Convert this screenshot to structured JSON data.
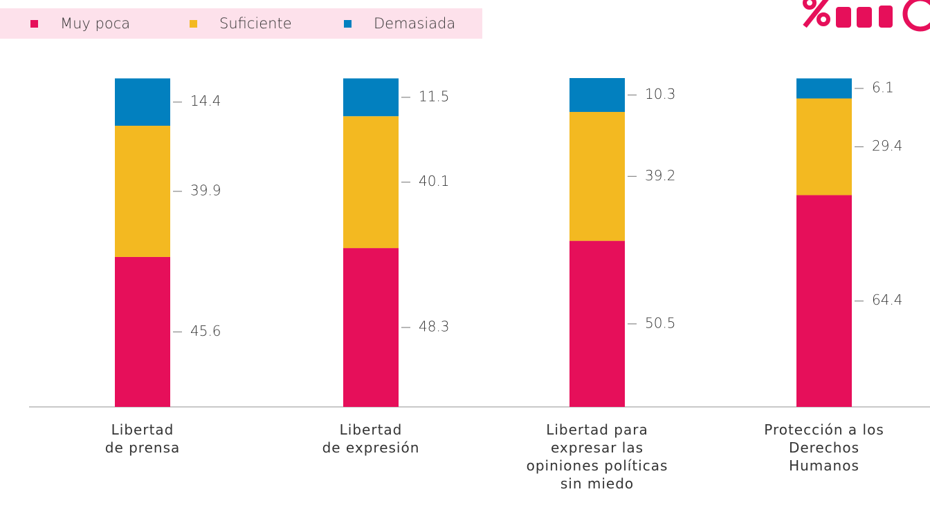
{
  "chart_data": {
    "type": "stacked_bar",
    "categories": [
      "Libertad\nde prensa",
      "Libertad\nde expresión",
      "Libertad para\nexpresar las\nopiniones políticas\nsin miedo",
      "Protección a los\nDerechos\nHumanos"
    ],
    "series": [
      {
        "name": "Muy poca",
        "color": "#e60f5a",
        "values": [
          45.6,
          48.3,
          50.5,
          64.4
        ]
      },
      {
        "name": "Suficiente",
        "color": "#f3b921",
        "values": [
          39.9,
          40.1,
          39.2,
          29.4
        ]
      },
      {
        "name": "Demasiada",
        "color": "#0280bf",
        "values": [
          14.4,
          11.5,
          10.3,
          6.1
        ]
      }
    ],
    "ylim": [
      0,
      100
    ],
    "legend": "top-left"
  }
}
